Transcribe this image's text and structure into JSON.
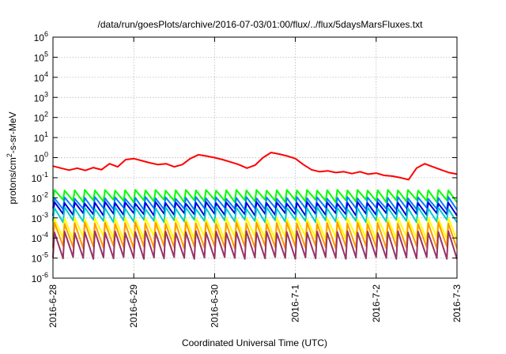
{
  "chart_data": {
    "type": "line",
    "title": "/data/run/goesPlots/archive/2016-07-03/01:00/flux/../flux/5daysMarsFluxes.txt",
    "xlabel": "Coordinated Universal Time (UTC)",
    "ylabel": {
      "pre": "protons/cm",
      "sup": "2",
      "post": "-s-sr-MeV"
    },
    "x_range_days": [
      0,
      5.0
    ],
    "x_ticks": [
      {
        "day": 0,
        "label": "2016-6-28"
      },
      {
        "day": 1,
        "label": "2016-6-29"
      },
      {
        "day": 2,
        "label": "2016-6-30"
      },
      {
        "day": 3,
        "label": "2016-7-1"
      },
      {
        "day": 4,
        "label": "2016-7-2"
      },
      {
        "day": 5,
        "label": "2016-7-3"
      }
    ],
    "y_log_range_exponents": [
      -6,
      6
    ],
    "y_ticks": [
      {
        "exp": -6,
        "label": "10",
        "sup": "-6"
      },
      {
        "exp": -5,
        "label": "10",
        "sup": "-5"
      },
      {
        "exp": -4,
        "label": "10",
        "sup": "-4"
      },
      {
        "exp": -3,
        "label": "10",
        "sup": "-3"
      },
      {
        "exp": -2,
        "label": "10",
        "sup": "-2"
      },
      {
        "exp": -1,
        "label": "10",
        "sup": "-1"
      },
      {
        "exp": 0,
        "label": "10",
        "sup": "0"
      },
      {
        "exp": 1,
        "label": "10",
        "sup": "1"
      },
      {
        "exp": 2,
        "label": "10",
        "sup": "2"
      },
      {
        "exp": 3,
        "label": "10",
        "sup": "3"
      },
      {
        "exp": 4,
        "label": "10",
        "sup": "4"
      },
      {
        "exp": 5,
        "label": "10",
        "sup": "5"
      },
      {
        "exp": 6,
        "label": "10",
        "sup": "6"
      }
    ],
    "grid": true,
    "sawtooth_cycles": 40,
    "series": [
      {
        "color": "#ff0000",
        "x": [
          0,
          0.1,
          0.2,
          0.3,
          0.4,
          0.5,
          0.6,
          0.7,
          0.8,
          0.9,
          1,
          1.1,
          1.2,
          1.3,
          1.4,
          1.5,
          1.6,
          1.7,
          1.8,
          1.9,
          2,
          2.1,
          2.2,
          2.3,
          2.4,
          2.5,
          2.6,
          2.7,
          2.8,
          2.9,
          3,
          3.1,
          3.2,
          3.3,
          3.4,
          3.5,
          3.6,
          3.7,
          3.8,
          3.9,
          4,
          4.1,
          4.2,
          4.3,
          4.4,
          4.5,
          4.6,
          4.7,
          4.8,
          4.9,
          5
        ],
        "y": [
          0.38,
          0.3,
          0.24,
          0.3,
          0.23,
          0.32,
          0.25,
          0.5,
          0.35,
          0.8,
          0.9,
          0.7,
          0.55,
          0.45,
          0.5,
          0.35,
          0.45,
          0.9,
          1.4,
          1.2,
          1.0,
          0.8,
          0.6,
          0.45,
          0.3,
          0.42,
          1.0,
          1.8,
          1.5,
          1.2,
          0.9,
          0.45,
          0.25,
          0.2,
          0.22,
          0.18,
          0.2,
          0.16,
          0.2,
          0.15,
          0.17,
          0.13,
          0.12,
          0.1,
          0.08,
          0.3,
          0.5,
          0.35,
          0.25,
          0.18,
          0.15
        ]
      },
      {
        "color": "#00ff00",
        "max": [
          0.023,
          0.025
        ],
        "min": [
          0.006,
          0.008
        ]
      },
      {
        "color": "#0080ff",
        "max": [
          0.009,
          0.011
        ],
        "min": [
          0.0025,
          0.0032
        ]
      },
      {
        "color": "#0000dd",
        "max": [
          0.0052,
          0.0062
        ],
        "min": [
          0.0013,
          0.0017
        ]
      },
      {
        "color": "#00cccc",
        "max": [
          0.0028,
          0.0034
        ],
        "min": [
          0.0006,
          0.0008
        ]
      },
      {
        "color": "#ffff00",
        "max": [
          0.00085,
          0.001
        ],
        "min": [
          8e-05,
          0.00012
        ]
      },
      {
        "color": "#ff9900",
        "max": [
          0.0005,
          0.0006
        ],
        "min": [
          3e-05,
          4e-05
        ]
      },
      {
        "color": "#993366",
        "max": [
          0.00018,
          0.00022
        ],
        "min": [
          9e-06,
          1.1e-05
        ]
      }
    ]
  }
}
